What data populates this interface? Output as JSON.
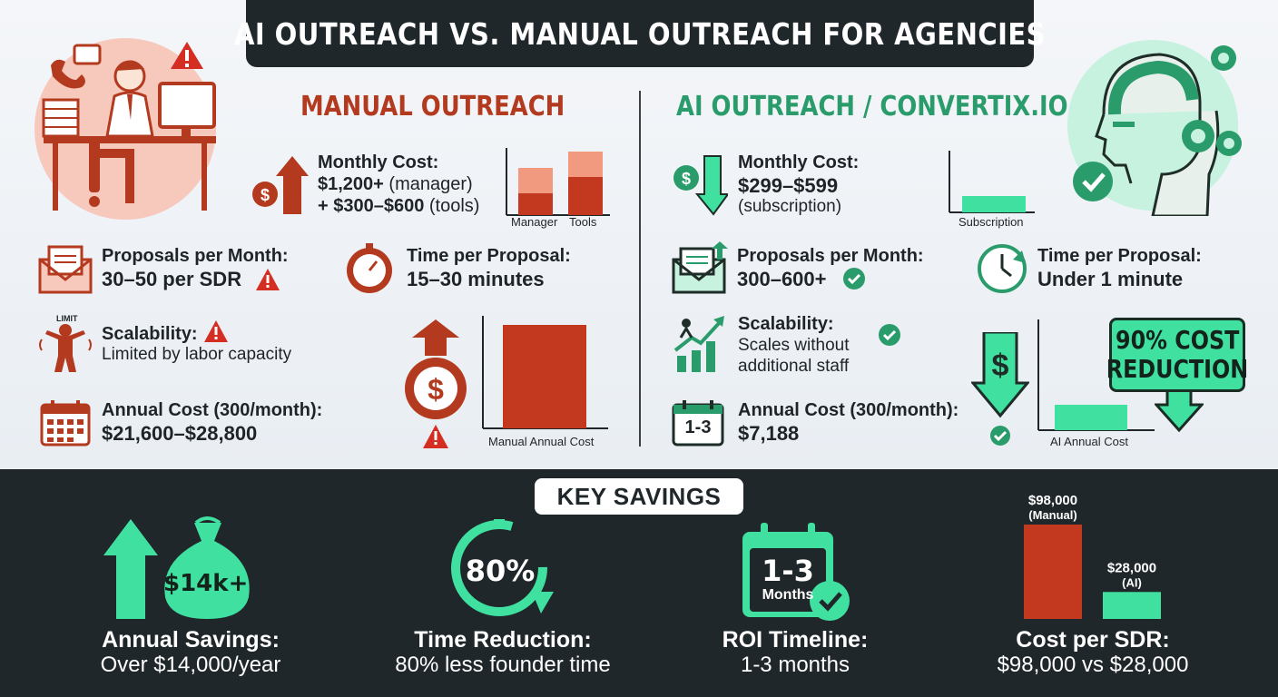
{
  "title": "AI OUTREACH VS. MANUAL OUTREACH FOR AGENCIES",
  "manual": {
    "heading": "MANUAL OUTREACH",
    "monthly_cost_label": "Monthly Cost:",
    "monthly_cost_line1_bold": "$1,200+",
    "monthly_cost_line1_rest": " (manager)",
    "monthly_cost_line2_bold": "+ $300–$600",
    "monthly_cost_line2_rest": " (tools)",
    "mini_chart": {
      "categories": [
        "Manager",
        "Tools"
      ]
    },
    "proposals_label": "Proposals per Month:",
    "proposals_value": "30–50 per SDR",
    "time_label": "Time per Proposal:",
    "time_value": "15–30 minutes",
    "scalability_label": "Scalability:",
    "scalability_value": "Limited by labor capacity",
    "limit_tag": "LIMIT",
    "annual_label": "Annual Cost (300/month):",
    "annual_value": "$21,600–$28,800",
    "annual_chart_label": "Manual Annual Cost"
  },
  "ai": {
    "heading": "AI OUTREACH / CONVERTIX.IO",
    "monthly_cost_label": "Monthly Cost:",
    "monthly_cost_value": "$299–$599",
    "monthly_cost_note": "(subscription)",
    "mini_chart_label": "Subscription",
    "proposals_label": "Proposals per Month:",
    "proposals_value": "300–600+",
    "time_label": "Time per Proposal:",
    "time_value": "Under 1 minute",
    "scalability_label": "Scalability:",
    "scalability_line1": "Scales without",
    "scalability_line2": "additional staff",
    "calendar_text": "1-3",
    "annual_label": "Annual Cost (300/month):",
    "annual_value": "$7,188",
    "annual_chart_label": "AI Annual Cost",
    "badge_line1": "90% COST",
    "badge_line2": "REDUCTION"
  },
  "key_savings": {
    "heading": "KEY SAVINGS",
    "items": [
      {
        "icon_text": "$14k+",
        "label": "Annual Savings:",
        "value": "Over $14,000/year"
      },
      {
        "icon_text": "80%",
        "label": "Time Reduction:",
        "value": "80% less founder time"
      },
      {
        "icon_text": "1-3",
        "icon_sub": "Months",
        "label": "ROI Timeline:",
        "value": "1-3 months"
      },
      {
        "label": "Cost per SDR:",
        "value": "$98,000 vs $28,000"
      }
    ],
    "cost_chart": {
      "type": "bar",
      "categories": [
        "Manual",
        "AI"
      ],
      "values": [
        98000,
        28000
      ],
      "labels": [
        {
          "amount": "$98,000",
          "tag": "(Manual)"
        },
        {
          "amount": "$28,000",
          "tag": "(AI)"
        }
      ]
    }
  },
  "colors": {
    "manual": "#b33a1e",
    "ai": "#3fe0a0",
    "dark": "#20272b"
  }
}
